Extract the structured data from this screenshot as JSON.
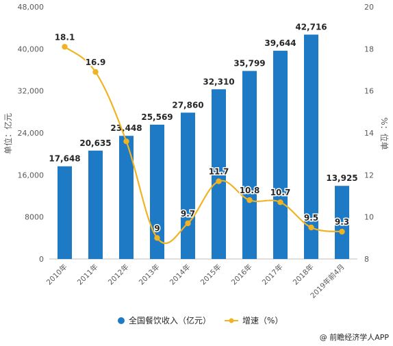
{
  "chart_data": {
    "type": "bar+line",
    "categories": [
      "2010年",
      "2011年",
      "2012年",
      "2013年",
      "2014年",
      "2015年",
      "2016年",
      "2017年",
      "2018年",
      "2019年前4月"
    ],
    "series": [
      {
        "name": "全国餐饮收入（亿元）",
        "type": "bar",
        "axis": "left",
        "color": "#1f7ac6",
        "values": [
          17648,
          20635,
          23448,
          25569,
          27860,
          32310,
          35799,
          39644,
          42716,
          13925
        ],
        "labels": [
          "17,648",
          "20,635",
          "23,448",
          "25,569",
          "27,860",
          "32,310",
          "35,799",
          "39,644",
          "42,716",
          "13,925"
        ]
      },
      {
        "name": "增速（%）",
        "type": "line",
        "axis": "right",
        "color": "#f0b323",
        "values": [
          18.1,
          16.9,
          13.6,
          9,
          9.7,
          11.7,
          10.8,
          10.7,
          9.5,
          9.3
        ],
        "labels": [
          "18.1",
          "16.9",
          "",
          "9",
          "9.7",
          "11.7",
          "10.8",
          "10.7",
          "9.5",
          "9.3"
        ]
      }
    ],
    "y_left": {
      "label": "单位：亿元",
      "range": [
        0,
        48000
      ],
      "ticks": [
        0,
        8000,
        16000,
        24000,
        32000,
        40000,
        48000
      ],
      "tick_labels": [
        "0",
        "8000",
        "16,000",
        "24,000",
        "32,000",
        "40,000",
        "48,000"
      ]
    },
    "y_right": {
      "label": "%：位单",
      "range": [
        8,
        20
      ],
      "ticks": [
        8,
        10,
        12,
        14,
        16,
        18,
        20
      ],
      "tick_labels": [
        "8",
        "10",
        "12",
        "14",
        "16",
        "18",
        "20"
      ]
    },
    "grid": false,
    "legend": "bottom",
    "source": "@ 前瞻经济学人APP"
  }
}
